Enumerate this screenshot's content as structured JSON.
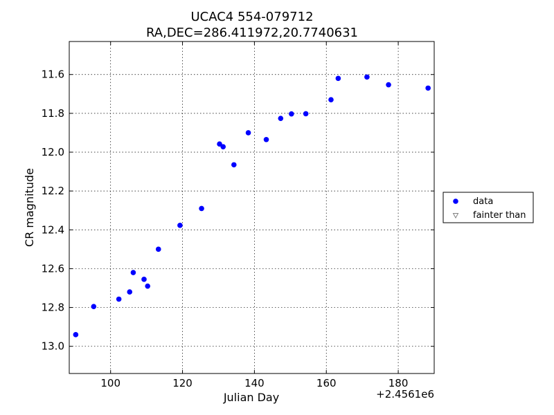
{
  "chart_data": {
    "type": "scatter",
    "title": "UCAC4 554-079712",
    "subtitle": "RA,DEC=286.411972,20.7740631",
    "xlabel": "Julian Day",
    "ylabel": "CR magnitude",
    "x_offset_label": "+2.4561e6",
    "xlim": [
      88.5,
      190
    ],
    "ylim": [
      13.14,
      11.43
    ],
    "y_inverted": true,
    "x_ticks": [
      100,
      120,
      140,
      160,
      180
    ],
    "x_tick_labels": [
      "100",
      "120",
      "140",
      "160",
      "180"
    ],
    "y_ticks": [
      11.6,
      11.8,
      12.0,
      12.2,
      12.4,
      12.6,
      12.8,
      13.0
    ],
    "y_tick_labels": [
      "11.6",
      "11.8",
      "12.0",
      "12.2",
      "12.4",
      "12.6",
      "12.8",
      "13.0"
    ],
    "grid": true,
    "legend_position": "right",
    "series": [
      {
        "name": "data",
        "marker": "circle",
        "color": "#0000ff",
        "points": [
          {
            "x": 90.3,
            "y": 12.94
          },
          {
            "x": 95.3,
            "y": 12.795
          },
          {
            "x": 102.3,
            "y": 12.757
          },
          {
            "x": 105.3,
            "y": 12.72
          },
          {
            "x": 106.3,
            "y": 12.62
          },
          {
            "x": 109.3,
            "y": 12.655
          },
          {
            "x": 110.3,
            "y": 12.69
          },
          {
            "x": 113.3,
            "y": 12.5
          },
          {
            "x": 119.3,
            "y": 12.377
          },
          {
            "x": 125.3,
            "y": 12.29
          },
          {
            "x": 130.3,
            "y": 11.958
          },
          {
            "x": 131.3,
            "y": 11.972
          },
          {
            "x": 134.3,
            "y": 12.065
          },
          {
            "x": 138.3,
            "y": 11.9
          },
          {
            "x": 143.3,
            "y": 11.935
          },
          {
            "x": 147.3,
            "y": 11.826
          },
          {
            "x": 150.3,
            "y": 11.803
          },
          {
            "x": 154.3,
            "y": 11.802
          },
          {
            "x": 161.3,
            "y": 11.73
          },
          {
            "x": 163.3,
            "y": 11.62
          },
          {
            "x": 171.3,
            "y": 11.613
          },
          {
            "x": 177.3,
            "y": 11.653
          },
          {
            "x": 188.3,
            "y": 11.67
          }
        ]
      },
      {
        "name": "fainter than",
        "marker": "triangle-down",
        "color": "#808080",
        "points": []
      }
    ]
  }
}
